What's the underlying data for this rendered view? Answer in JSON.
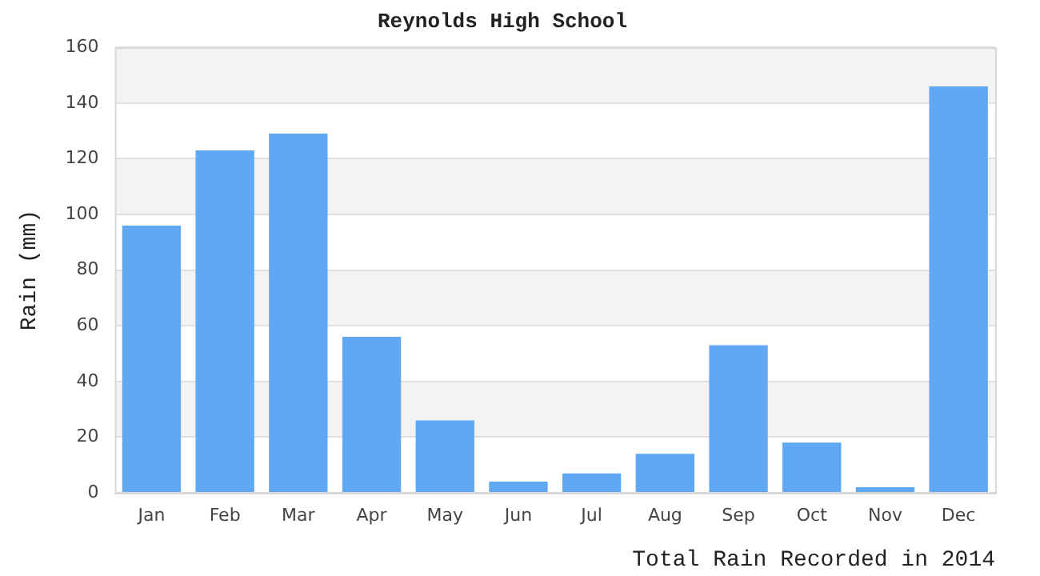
{
  "chart_data": {
    "type": "bar",
    "title": "Reynolds High School",
    "ylabel": "Rain (mm)",
    "xlabel": "Total Rain Recorded in 2014",
    "categories": [
      "Jan",
      "Feb",
      "Mar",
      "Apr",
      "May",
      "Jun",
      "Jul",
      "Aug",
      "Sep",
      "Oct",
      "Nov",
      "Dec"
    ],
    "values": [
      96,
      123,
      129,
      56,
      26,
      4,
      7,
      14,
      53,
      18,
      2,
      146
    ],
    "color": "#60a8f4",
    "ylim": [
      0,
      160
    ],
    "yticks": [
      0,
      20,
      40,
      60,
      80,
      100,
      120,
      140,
      160
    ],
    "grid": "y"
  }
}
